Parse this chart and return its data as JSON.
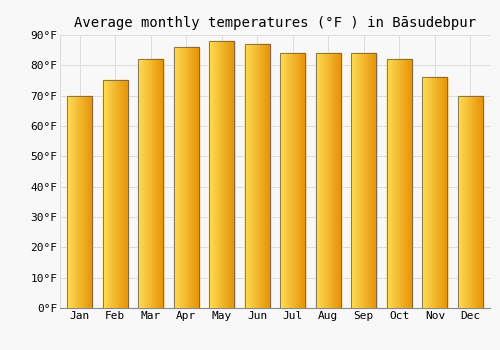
{
  "title": "Average monthly temperatures (°F ) in Bāsudebpur",
  "months": [
    "Jan",
    "Feb",
    "Mar",
    "Apr",
    "May",
    "Jun",
    "Jul",
    "Aug",
    "Sep",
    "Oct",
    "Nov",
    "Dec"
  ],
  "values": [
    70,
    75,
    82,
    86,
    88,
    87,
    84,
    84,
    84,
    82,
    76,
    70
  ],
  "bar_color_left": "#FFDD55",
  "bar_color_right": "#E8960A",
  "bar_edge_color": "#555555",
  "ylim": [
    0,
    90
  ],
  "yticks": [
    0,
    10,
    20,
    30,
    40,
    50,
    60,
    70,
    80,
    90
  ],
  "ytick_labels": [
    "0°F",
    "10°F",
    "20°F",
    "30°F",
    "40°F",
    "50°F",
    "60°F",
    "70°F",
    "80°F",
    "90°F"
  ],
  "bg_color": "#F8F8F8",
  "grid_color": "#DDDDDD",
  "title_fontsize": 10,
  "tick_fontsize": 8,
  "bar_width": 0.7
}
